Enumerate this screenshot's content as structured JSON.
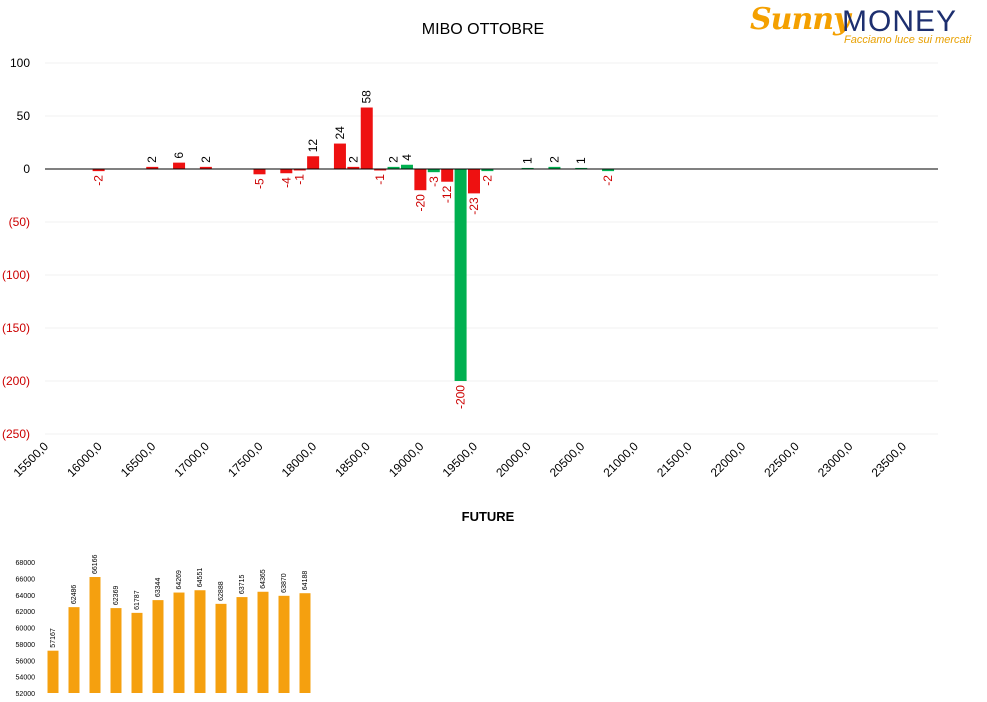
{
  "logo": {
    "brand_a": "Sunny",
    "brand_b": "MONEY",
    "tagline": "Facciamo luce sui mercati"
  },
  "colors": {
    "call": "#ee1111",
    "put": "#00b050",
    "future_bar": "#f5a00f",
    "neg_label": "#cc0000",
    "axis": "#000000"
  },
  "chart_data": [
    {
      "type": "bar",
      "title": "MIBO OTTOBRE",
      "ylim": [
        -250,
        100
      ],
      "yticks": [
        {
          "v": 100,
          "t": "100"
        },
        {
          "v": 50,
          "t": "50"
        },
        {
          "v": 0,
          "t": "0"
        },
        {
          "v": -50,
          "t": "(50)"
        },
        {
          "v": -100,
          "t": "(100)"
        },
        {
          "v": -150,
          "t": "(150)"
        },
        {
          "v": -200,
          "t": "(200)"
        },
        {
          "v": -250,
          "t": "(250)"
        }
      ],
      "xticks": [
        "15500,0",
        "16000,0",
        "16500,0",
        "17000,0",
        "17500,0",
        "18000,0",
        "18500,0",
        "19000,0",
        "19500,0",
        "20000,0",
        "20500,0",
        "21000,0",
        "21500,0",
        "22000,0",
        "22500,0",
        "23000,0",
        "23500,0"
      ],
      "xlim": [
        15500,
        23500
      ],
      "grid": true,
      "bars": [
        {
          "x": 16000,
          "v": -2,
          "label": "-2",
          "color": "call"
        },
        {
          "x": 16500,
          "v": 2,
          "label": "2",
          "color": "call"
        },
        {
          "x": 16750,
          "v": 6,
          "label": "6",
          "color": "call"
        },
        {
          "x": 17000,
          "v": 2,
          "label": "2",
          "color": "call"
        },
        {
          "x": 17500,
          "v": -5,
          "label": "-5",
          "color": "call"
        },
        {
          "x": 17750,
          "v": -4,
          "label": "-4",
          "color": "call"
        },
        {
          "x": 17875,
          "v": -1,
          "label": "-1",
          "color": "call"
        },
        {
          "x": 18000,
          "v": 12,
          "label": "12",
          "color": "call"
        },
        {
          "x": 18250,
          "v": 24,
          "label": "24",
          "color": "call"
        },
        {
          "x": 18375,
          "v": 2,
          "label": "2",
          "color": "call"
        },
        {
          "x": 18500,
          "v": 58,
          "label": "58",
          "color": "call"
        },
        {
          "x": 18625,
          "v": -1,
          "label": "-1",
          "color": "call"
        },
        {
          "x": 18750,
          "v": 2,
          "label": "2",
          "color": "put"
        },
        {
          "x": 18875,
          "v": 4,
          "label": "4",
          "color": "put"
        },
        {
          "x": 19000,
          "v": -20,
          "label": "-20",
          "color": "call"
        },
        {
          "x": 19125,
          "v": -3,
          "label": "-3",
          "color": "put"
        },
        {
          "x": 19250,
          "v": -12,
          "label": "-12",
          "color": "call"
        },
        {
          "x": 19375,
          "v": -200,
          "label": "-200",
          "color": "put"
        },
        {
          "x": 19500,
          "v": -23,
          "label": "-23",
          "color": "call"
        },
        {
          "x": 19625,
          "v": -2,
          "label": "-2",
          "color": "put"
        },
        {
          "x": 20000,
          "v": 1,
          "label": "1",
          "color": "put"
        },
        {
          "x": 20250,
          "v": 2,
          "label": "2",
          "color": "put"
        },
        {
          "x": 20500,
          "v": 1,
          "label": "1",
          "color": "put"
        },
        {
          "x": 20750,
          "v": -2,
          "label": "-2",
          "color": "put"
        }
      ]
    },
    {
      "type": "bar",
      "title": "FUTURE",
      "ylim": [
        52000,
        68000
      ],
      "yticks": [
        "52000",
        "54000",
        "56000",
        "58000",
        "60000",
        "62000",
        "64000",
        "66000",
        "68000"
      ],
      "values": [
        57167,
        62486,
        66166,
        62369,
        61787,
        63344,
        64269,
        64551,
        62888,
        63715,
        64365,
        63870,
        64188
      ],
      "grid": false
    }
  ]
}
